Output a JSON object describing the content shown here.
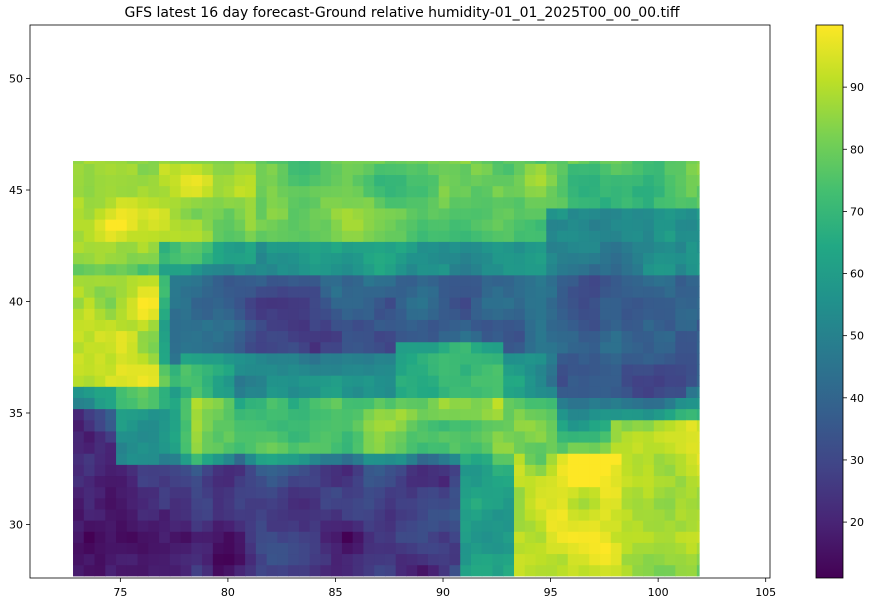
{
  "chart_data": {
    "type": "heatmap",
    "title": "GFS latest 16 day forecast-Ground relative humidity-01_01_2025T00_00_00.tiff",
    "xlabel": "",
    "ylabel": "",
    "xlim": [
      70.8,
      105.2
    ],
    "ylim": [
      27.6,
      52.4
    ],
    "data_extent": {
      "x": [
        72.8,
        101.9
      ],
      "y": [
        27.7,
        46.3
      ]
    },
    "x_ticks": [
      75,
      80,
      85,
      90,
      95,
      100,
      105
    ],
    "y_ticks": [
      30,
      35,
      40,
      45,
      50
    ],
    "colorbar": {
      "colormap": "viridis",
      "range": [
        11,
        100
      ],
      "ticks": [
        20,
        30,
        40,
        50,
        60,
        70,
        80,
        90
      ]
    },
    "grid_resolution_deg": 0.5,
    "features": [
      {
        "region": "north-west corner",
        "lon": [
          72.8,
          80
        ],
        "lat": [
          42.8,
          46.3
        ],
        "value": 98
      },
      {
        "region": "north band",
        "lon": [
          74,
          102
        ],
        "lat": [
          42,
          46.3
        ],
        "value": 78
      },
      {
        "region": "central depression",
        "lon": [
          78,
          100
        ],
        "lat": [
          36.5,
          41.5
        ],
        "value": 33
      },
      {
        "region": "west middle",
        "lon": [
          72.8,
          76
        ],
        "lat": [
          36,
          40
        ],
        "value": 92
      },
      {
        "region": "west middle bright",
        "lon": [
          76,
          79
        ],
        "lat": [
          33.5,
          36
        ],
        "value": 95
      },
      {
        "region": "south-west dry",
        "lon": [
          72.8,
          77
        ],
        "lat": [
          27.7,
          35
        ],
        "value": 16
      },
      {
        "region": "south dry",
        "lon": [
          78,
          92
        ],
        "lat": [
          27.7,
          32
        ],
        "value": 22
      },
      {
        "region": "middle ridge",
        "lon": [
          79,
          94
        ],
        "lat": [
          33.5,
          36.5
        ],
        "value": 80
      },
      {
        "region": "hot spot",
        "lon": [
          89,
          91.5
        ],
        "lat": [
          35.5,
          37
        ],
        "value": 98
      },
      {
        "region": "south-east humid",
        "lon": [
          92,
          97
        ],
        "lat": [
          28,
          32
        ],
        "value": 96
      },
      {
        "region": "east edge",
        "lon": [
          99,
          101.9
        ],
        "lat": [
          28,
          33.5
        ],
        "value": 88
      },
      {
        "region": "east dry",
        "lon": [
          96,
          101.9
        ],
        "lat": [
          37,
          43
        ],
        "value": 32
      }
    ]
  }
}
